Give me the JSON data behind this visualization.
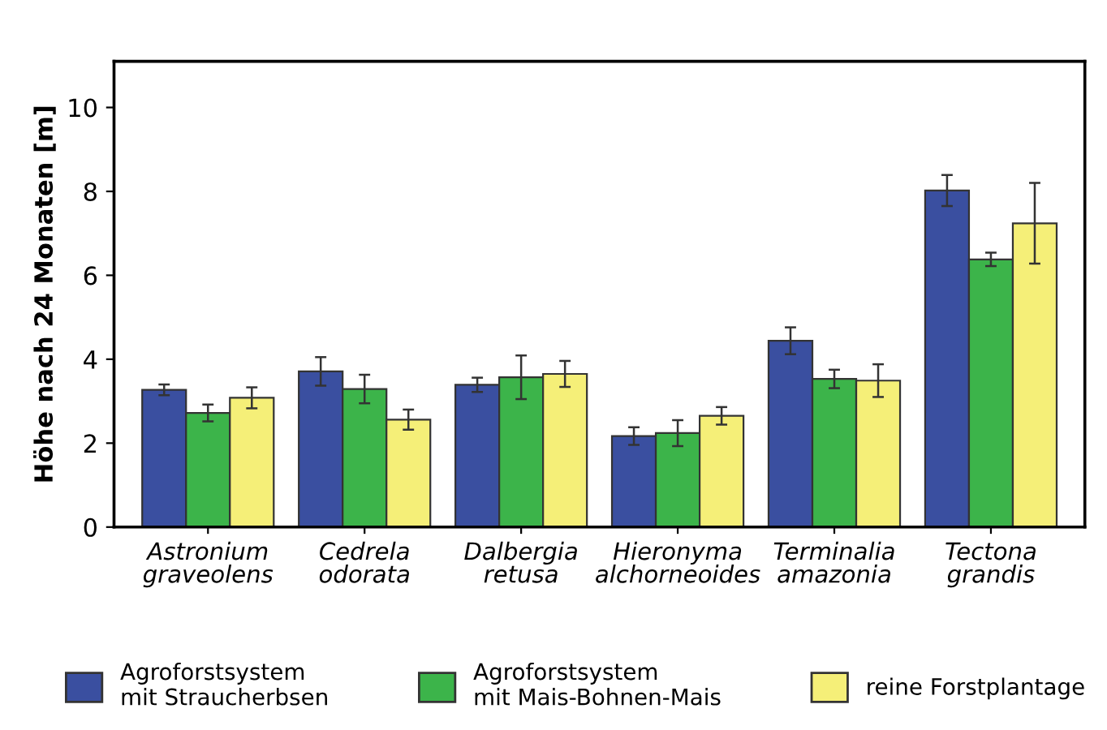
{
  "chart_data": {
    "type": "bar",
    "ylabel": "Höhe nach 24 Monaten [m]",
    "categories": [
      "Astronium\ngraveolens",
      "Cedrela\nodorata",
      "Dalbergia\nretusa",
      "Hieronyma\nalchorneoides",
      "Terminalia\namazonia",
      "Tectona\ngrandis"
    ],
    "series": [
      {
        "name": "Agroforstsystem\nmit Straucherbsen",
        "color": "#3a4fa0",
        "values": [
          3.27,
          3.71,
          3.39,
          2.17,
          4.44,
          8.02
        ],
        "errors": [
          0.13,
          0.34,
          0.17,
          0.21,
          0.32,
          0.37
        ]
      },
      {
        "name": "Agroforstsystem\nmit Mais-Bohnen-Mais",
        "color": "#3cb44a",
        "values": [
          2.72,
          3.29,
          3.57,
          2.24,
          3.53,
          6.38
        ],
        "errors": [
          0.2,
          0.34,
          0.52,
          0.31,
          0.22,
          0.16
        ]
      },
      {
        "name": "reine Forstplantage",
        "color": "#f5ef78",
        "values": [
          3.08,
          2.56,
          3.65,
          2.65,
          3.49,
          7.24
        ],
        "errors": [
          0.25,
          0.24,
          0.31,
          0.21,
          0.39,
          0.96
        ]
      }
    ],
    "ylim": [
      0,
      11.1
    ],
    "yticks": [
      0,
      2,
      4,
      6,
      8,
      10
    ],
    "grid": false,
    "legend": "bottom"
  }
}
